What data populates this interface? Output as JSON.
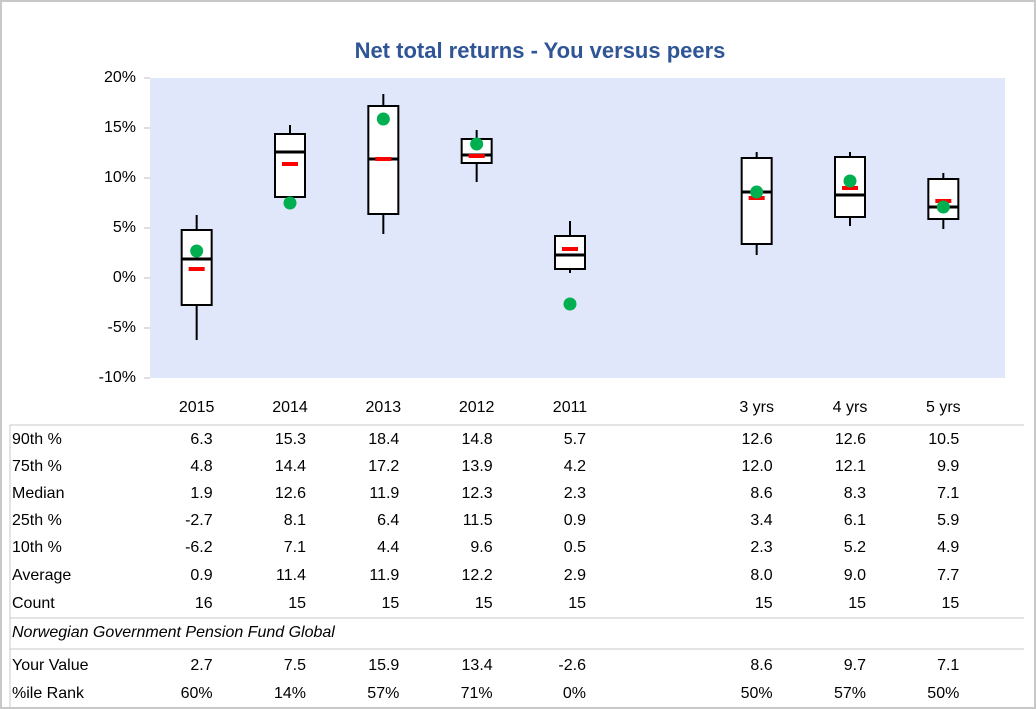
{
  "chart_data": {
    "type": "box",
    "title": "Net total returns - You versus peers",
    "note": "Norwegian Government Pension Fund Global",
    "categories": [
      "2015",
      "2014",
      "2013",
      "2012",
      "2011",
      null,
      "3 yrs",
      "4 yrs",
      "5 yrs"
    ],
    "ylim": [
      -10,
      20
    ],
    "yticks": [
      {
        "value": -10,
        "label": "-10%"
      },
      {
        "value": -5,
        "label": "-5%"
      },
      {
        "value": 0,
        "label": "0%"
      },
      {
        "value": 5,
        "label": "5%"
      },
      {
        "value": 10,
        "label": "10%"
      },
      {
        "value": 15,
        "label": "15%"
      },
      {
        "value": 20,
        "label": "20%"
      }
    ],
    "grid": false,
    "background": "#e1e7fb",
    "series": [
      {
        "name": "90th %",
        "color": "#000000",
        "values": [
          6.3,
          15.3,
          18.4,
          14.8,
          5.7,
          null,
          12.6,
          12.6,
          10.5
        ],
        "value_labels": [
          "6.3",
          "15.3",
          "18.4",
          "14.8",
          "5.7",
          null,
          "12.6",
          "12.6",
          "10.5"
        ]
      },
      {
        "name": "75th %",
        "color": "#000000",
        "values": [
          4.8,
          14.4,
          17.2,
          13.9,
          4.2,
          null,
          12.0,
          12.1,
          9.9
        ],
        "value_labels": [
          "4.8",
          "14.4",
          "17.2",
          "13.9",
          "4.2",
          null,
          "12.0",
          "12.1",
          "9.9"
        ]
      },
      {
        "name": "Median",
        "color": "#000000",
        "values": [
          1.9,
          12.6,
          11.9,
          12.3,
          2.3,
          null,
          8.6,
          8.3,
          7.1
        ],
        "value_labels": [
          "1.9",
          "12.6",
          "11.9",
          "12.3",
          "2.3",
          null,
          "8.6",
          "8.3",
          "7.1"
        ]
      },
      {
        "name": "25th %",
        "color": "#000000",
        "values": [
          -2.7,
          8.1,
          6.4,
          11.5,
          0.9,
          null,
          3.4,
          6.1,
          5.9
        ],
        "value_labels": [
          "-2.7",
          "8.1",
          "6.4",
          "11.5",
          "0.9",
          null,
          "3.4",
          "6.1",
          "5.9"
        ]
      },
      {
        "name": "10th %",
        "color": "#000000",
        "values": [
          -6.2,
          7.1,
          4.4,
          9.6,
          0.5,
          null,
          2.3,
          5.2,
          4.9
        ],
        "value_labels": [
          "-6.2",
          "7.1",
          "4.4",
          "9.6",
          "0.5",
          null,
          "2.3",
          "5.2",
          "4.9"
        ]
      },
      {
        "name": "Average",
        "color": "#ff0000",
        "values": [
          0.9,
          11.4,
          11.9,
          12.2,
          2.9,
          null,
          8.0,
          9.0,
          7.7
        ],
        "value_labels": [
          "0.9",
          "11.4",
          "11.9",
          "12.2",
          "2.9",
          null,
          "8.0",
          "9.0",
          "7.7"
        ]
      },
      {
        "name": "Count",
        "values": [
          16,
          15,
          15,
          15,
          15,
          null,
          15,
          15,
          15
        ]
      },
      {
        "name": "Your Value",
        "color": "#00b050",
        "values": [
          2.7,
          7.5,
          15.9,
          13.4,
          -2.6,
          null,
          8.6,
          9.7,
          7.1
        ],
        "value_labels": [
          "2.7",
          "7.5",
          "15.9",
          "13.4",
          "-2.6",
          null,
          "8.6",
          "9.7",
          "7.1"
        ]
      },
      {
        "name": "%ile Rank",
        "values": [
          60,
          14,
          57,
          71,
          0,
          null,
          50,
          57,
          50
        ],
        "value_labels": [
          "60%",
          "14%",
          "57%",
          "71%",
          "0%",
          null,
          "50%",
          "57%",
          "50%"
        ]
      }
    ]
  }
}
